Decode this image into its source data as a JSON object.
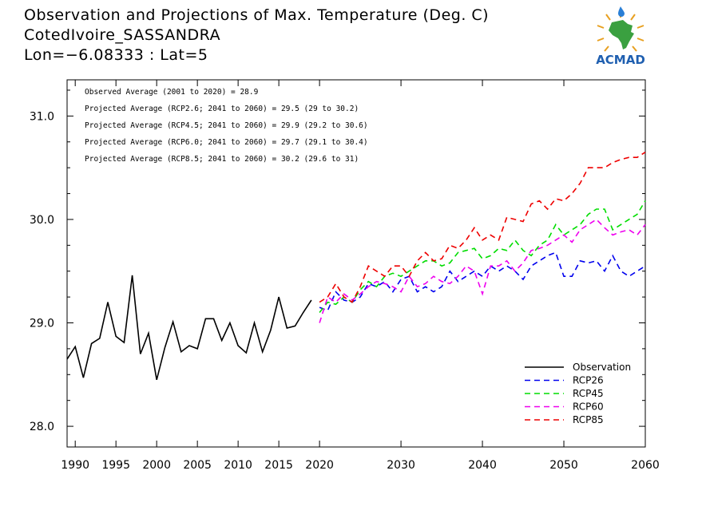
{
  "header": {
    "title": "Observation and Projections of Max. Temperature (Deg. C)",
    "station": "CotedIvoire_SASSANDRA",
    "coords": "Lon=−6.08333 : Lat=5"
  },
  "logo": {
    "text": "ACMAD",
    "icon": "africa-sun-logo-icon"
  },
  "stats": [
    "Observed Average (2001 to 2020) = 28.9",
    "Projected Average (RCP2.6; 2041 to 2060) = 29.5 (29 to 30.2)",
    "Projected Average (RCP4.5; 2041 to 2060) = 29.9 (29.2 to 30.6)",
    "Projected Average (RCP6.0; 2041 to 2060) = 29.7 (29.1 to 30.4)",
    "Projected Average (RCP8.5; 2041 to 2060) = 30.2 (29.6 to 31)"
  ],
  "chart_data": {
    "type": "line",
    "xlim": [
      1989,
      2060
    ],
    "ylim": [
      27.8,
      31.35
    ],
    "xticks": [
      1990,
      1995,
      2000,
      2005,
      2010,
      2015,
      2020,
      2030,
      2040,
      2050,
      2060
    ],
    "yticks": [
      28.0,
      29.0,
      30.0,
      31.0
    ],
    "ytick_labels": [
      "28.0",
      "29.0",
      "30.0",
      "31.0"
    ],
    "legend_position": "bottom-right",
    "series": [
      {
        "name": "Observation",
        "color": "#000000",
        "dash": "solid",
        "x": [
          1989,
          1990,
          1991,
          1992,
          1993,
          1994,
          1995,
          1996,
          1997,
          1998,
          1999,
          2000,
          2001,
          2002,
          2003,
          2004,
          2005,
          2006,
          2007,
          2008,
          2009,
          2010,
          2011,
          2012,
          2013,
          2014,
          2015,
          2016,
          2017,
          2018,
          2019
        ],
        "values": [
          28.65,
          28.77,
          28.47,
          28.8,
          28.85,
          29.2,
          28.87,
          28.81,
          29.46,
          28.7,
          28.9,
          28.45,
          28.76,
          29.01,
          28.72,
          28.78,
          28.75,
          29.04,
          29.04,
          28.83,
          29.0,
          28.78,
          28.71,
          29.0,
          28.72,
          28.93,
          29.25,
          28.95,
          28.97,
          29.1,
          29.22
        ]
      },
      {
        "name": "RCP26",
        "color": "#0000ee",
        "dash": "dashed",
        "x": [
          2020,
          2021,
          2022,
          2023,
          2024,
          2025,
          2026,
          2027,
          2028,
          2029,
          2030,
          2031,
          2032,
          2033,
          2034,
          2035,
          2036,
          2037,
          2038,
          2039,
          2040,
          2041,
          2042,
          2043,
          2044,
          2045,
          2046,
          2047,
          2048,
          2049,
          2050,
          2051,
          2052,
          2053,
          2054,
          2055,
          2056,
          2057,
          2058,
          2059,
          2060
        ],
        "values": [
          29.15,
          29.12,
          29.3,
          29.22,
          29.2,
          29.25,
          29.38,
          29.35,
          29.4,
          29.3,
          29.42,
          29.45,
          29.3,
          29.35,
          29.3,
          29.35,
          29.5,
          29.4,
          29.45,
          29.5,
          29.45,
          29.55,
          29.5,
          29.55,
          29.5,
          29.42,
          29.55,
          29.6,
          29.65,
          29.68,
          29.45,
          29.45,
          29.6,
          29.58,
          29.6,
          29.5,
          29.65,
          29.5,
          29.45,
          29.5,
          29.55
        ]
      },
      {
        "name": "RCP45",
        "color": "#00dd00",
        "dash": "dashed",
        "x": [
          2020,
          2021,
          2022,
          2023,
          2024,
          2025,
          2026,
          2027,
          2028,
          2029,
          2030,
          2031,
          2032,
          2033,
          2034,
          2035,
          2036,
          2037,
          2038,
          2039,
          2040,
          2041,
          2042,
          2043,
          2044,
          2045,
          2046,
          2047,
          2048,
          2049,
          2050,
          2051,
          2052,
          2053,
          2054,
          2055,
          2056,
          2057,
          2058,
          2059,
          2060
        ],
        "values": [
          29.1,
          29.2,
          29.18,
          29.25,
          29.2,
          29.32,
          29.4,
          29.35,
          29.45,
          29.48,
          29.45,
          29.5,
          29.55,
          29.6,
          29.6,
          29.55,
          29.58,
          29.68,
          29.7,
          29.72,
          29.62,
          29.65,
          29.72,
          29.7,
          29.8,
          29.7,
          29.65,
          29.75,
          29.8,
          29.95,
          29.85,
          29.9,
          29.95,
          30.05,
          30.1,
          30.1,
          29.9,
          29.95,
          30.0,
          30.05,
          30.18
        ]
      },
      {
        "name": "RCP60",
        "color": "#ee00ee",
        "dash": "dashed",
        "x": [
          2020,
          2021,
          2022,
          2023,
          2024,
          2025,
          2026,
          2027,
          2028,
          2029,
          2030,
          2031,
          2032,
          2033,
          2034,
          2035,
          2036,
          2037,
          2038,
          2039,
          2040,
          2041,
          2042,
          2043,
          2044,
          2045,
          2046,
          2047,
          2048,
          2049,
          2050,
          2051,
          2052,
          2053,
          2054,
          2055,
          2056,
          2057,
          2058,
          2059,
          2060
        ],
        "values": [
          29.0,
          29.25,
          29.2,
          29.28,
          29.22,
          29.28,
          29.35,
          29.4,
          29.38,
          29.35,
          29.3,
          29.45,
          29.35,
          29.38,
          29.45,
          29.4,
          29.38,
          29.45,
          29.55,
          29.5,
          29.28,
          29.55,
          29.55,
          29.6,
          29.5,
          29.58,
          29.7,
          29.72,
          29.75,
          29.8,
          29.85,
          29.78,
          29.9,
          29.95,
          30.0,
          29.92,
          29.85,
          29.88,
          29.9,
          29.85,
          29.95
        ]
      },
      {
        "name": "RCP85",
        "color": "#ee0000",
        "dash": "dashed",
        "x": [
          2020,
          2021,
          2022,
          2023,
          2024,
          2025,
          2026,
          2027,
          2028,
          2029,
          2030,
          2031,
          2032,
          2033,
          2034,
          2035,
          2036,
          2037,
          2038,
          2039,
          2040,
          2041,
          2042,
          2043,
          2044,
          2045,
          2046,
          2047,
          2048,
          2049,
          2050,
          2051,
          2052,
          2053,
          2054,
          2055,
          2056,
          2057,
          2058,
          2059,
          2060
        ],
        "values": [
          29.2,
          29.25,
          29.38,
          29.25,
          29.2,
          29.35,
          29.55,
          29.5,
          29.45,
          29.55,
          29.55,
          29.45,
          29.6,
          29.68,
          29.6,
          29.62,
          29.75,
          29.72,
          29.8,
          29.92,
          29.8,
          29.85,
          29.8,
          30.02,
          30.0,
          29.98,
          30.15,
          30.18,
          30.1,
          30.2,
          30.18,
          30.25,
          30.35,
          30.5,
          30.5,
          30.5,
          30.55,
          30.58,
          30.6,
          30.6,
          30.65
        ]
      }
    ]
  }
}
